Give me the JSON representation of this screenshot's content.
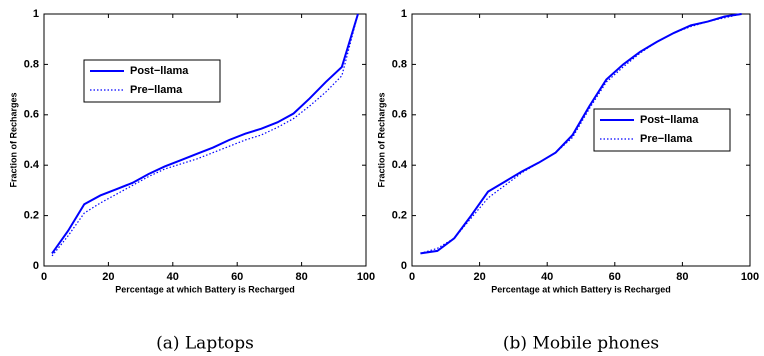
{
  "chart_data": [
    {
      "type": "line",
      "caption": "(a) Laptops",
      "xlabel": "Percentage at which Battery is Recharged",
      "ylabel": "Fraction of Recharges",
      "x": [
        2.5,
        7.5,
        12.5,
        17.5,
        22.5,
        27.5,
        32.5,
        37.5,
        42.5,
        47.5,
        52.5,
        57.5,
        62.5,
        67.5,
        72.5,
        77.5,
        82.5,
        87.5,
        92.5,
        97.5
      ],
      "series": [
        {
          "name": "Post−llama",
          "color": "#0000ff",
          "style": "solid",
          "values": [
            0.05,
            0.14,
            0.245,
            0.28,
            0.305,
            0.33,
            0.365,
            0.395,
            0.42,
            0.445,
            0.47,
            0.5,
            0.525,
            0.545,
            0.57,
            0.605,
            0.665,
            0.73,
            0.79,
            1.0
          ]
        },
        {
          "name": "Pre−llama",
          "color": "#0000ff",
          "style": "dotted",
          "values": [
            0.04,
            0.12,
            0.21,
            0.25,
            0.285,
            0.32,
            0.355,
            0.385,
            0.405,
            0.425,
            0.45,
            0.475,
            0.5,
            0.52,
            0.55,
            0.585,
            0.635,
            0.69,
            0.755,
            1.0
          ]
        }
      ],
      "xlim": [
        0,
        100
      ],
      "xticks": [
        0,
        20,
        40,
        60,
        80,
        100
      ],
      "ylim": [
        0,
        1
      ],
      "yticks": [
        0,
        0.2,
        0.4,
        0.6,
        0.8,
        1
      ],
      "legend": "upper left"
    },
    {
      "type": "line",
      "caption": "(b) Mobile phones",
      "xlabel": "Percentage at which Battery is Recharged",
      "ylabel": "Fraction of Recharges",
      "x": [
        2.5,
        7.5,
        12.5,
        17.5,
        22.5,
        27.5,
        32.5,
        37.5,
        42.5,
        47.5,
        52.5,
        57.5,
        62.5,
        67.5,
        72.5,
        77.5,
        82.5,
        87.5,
        92.5,
        97.5
      ],
      "series": [
        {
          "name": "Post−llama",
          "color": "#0000ff",
          "style": "solid",
          "values": [
            0.05,
            0.06,
            0.11,
            0.2,
            0.295,
            0.335,
            0.375,
            0.41,
            0.45,
            0.52,
            0.635,
            0.74,
            0.8,
            0.85,
            0.89,
            0.925,
            0.955,
            0.97,
            0.99,
            1.0
          ]
        },
        {
          "name": "Pre−llama",
          "color": "#0000ff",
          "style": "dotted",
          "values": [
            0.05,
            0.07,
            0.11,
            0.19,
            0.27,
            0.32,
            0.37,
            0.41,
            0.45,
            0.51,
            0.625,
            0.73,
            0.79,
            0.845,
            0.89,
            0.925,
            0.95,
            0.97,
            0.985,
            1.0
          ]
        }
      ],
      "xlim": [
        0,
        100
      ],
      "xticks": [
        0,
        20,
        40,
        60,
        80,
        100
      ],
      "ylim": [
        0,
        1
      ],
      "yticks": [
        0,
        0.2,
        0.4,
        0.6,
        0.8,
        1
      ],
      "legend": "center right"
    }
  ]
}
